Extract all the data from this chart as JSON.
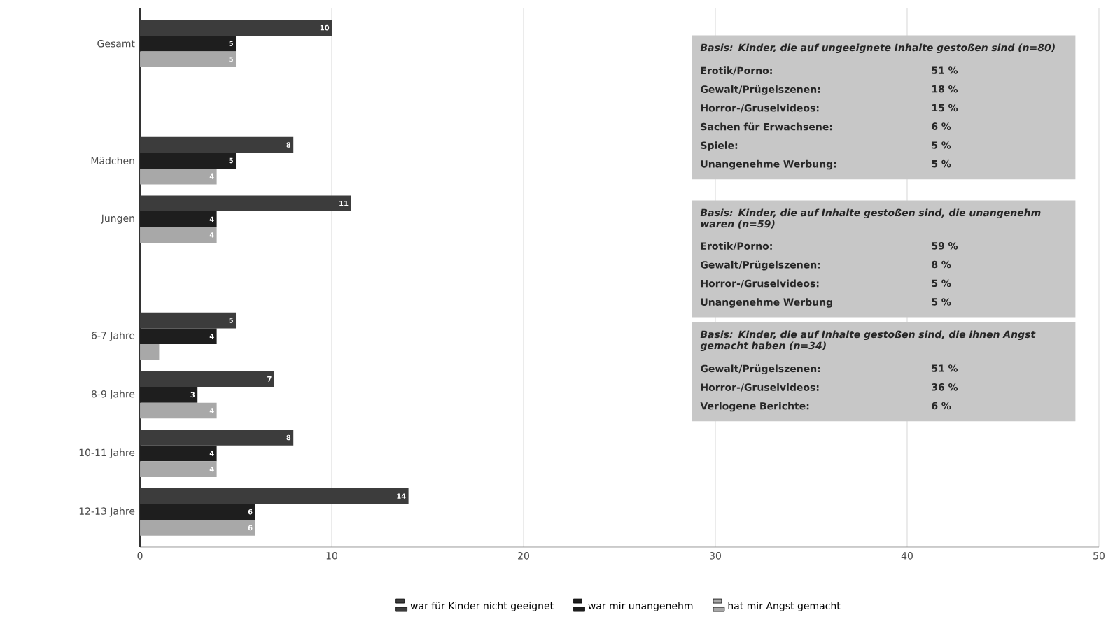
{
  "chart_data": {
    "type": "bar",
    "orientation": "horizontal",
    "categories": [
      "Gesamt",
      null,
      "Mädchen",
      "Jungen",
      null,
      "6-7 Jahre",
      "8-9 Jahre",
      "10-11 Jahre",
      "12-13 Jahre"
    ],
    "series": [
      {
        "name": "war für Kinder nicht geeignet",
        "color": "#3c3c3c",
        "values": [
          10,
          null,
          8,
          11,
          null,
          5,
          7,
          8,
          14
        ],
        "value_labels": [
          "10",
          null,
          "8",
          "11",
          null,
          "5",
          "7",
          "8",
          "14"
        ]
      },
      {
        "name": "war mir unangenehm",
        "color": "#1e1e1e",
        "values": [
          5,
          null,
          5,
          4,
          null,
          4,
          3,
          4,
          6
        ],
        "value_labels": [
          "5",
          null,
          "5",
          "4",
          null,
          "4",
          "3",
          "4",
          "6"
        ]
      },
      {
        "name": "hat mir Angst gemacht",
        "color": "#a8a8a8",
        "values": [
          5,
          null,
          4,
          4,
          null,
          1,
          4,
          4,
          6
        ],
        "value_labels": [
          "5",
          null,
          "4",
          "4",
          null,
          null,
          "4",
          "4",
          "6"
        ]
      }
    ],
    "xlim": [
      0,
      50
    ],
    "xticks": [
      0,
      10,
      20,
      30,
      40,
      50
    ],
    "grid": "x",
    "legend": "bottom",
    "annotations": [
      "Basis: Kinder, die auf ungeeignete Inhalte gestoßen sind (n=80)",
      "Erotik/Porno:",
      "51 %",
      "Gewalt/Prügelszenen:",
      "18 %",
      "Horror-/Gruselvideos:",
      "15 %",
      "Sachen für Erwachsene:",
      "6 %",
      "Spiele:",
      "5 %",
      "Unangenehme Werbung:",
      "5 %",
      "Basis: Kinder, die auf Inhalte gestoßen sind, die unangenehm waren (n=59)",
      "Erotik/Porno:",
      "59 %",
      "Gewalt/Prügelszenen:",
      "8 %",
      "Horror-/Gruselvideos:",
      "5 %",
      "Unangenehme Werbung",
      "5 %",
      "Basis: Kinder, die auf Inhalte gestoßen sind, die ihnen Angst gemacht haben (n=34)",
      "Gewalt/Prügelszenen:",
      "51 %",
      "Horror-/Gruselvideos:",
      "36 %",
      "Verlogene Berichte:",
      "6 %"
    ]
  }
}
